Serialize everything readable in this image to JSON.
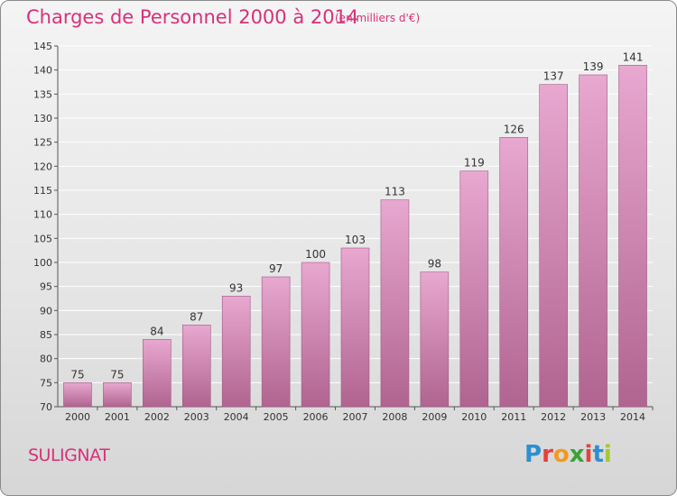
{
  "header": {
    "title": "Charges de Personnel 2000 à 2014",
    "subtitle": "(en milliers d'€)"
  },
  "footer": {
    "commune": "SULIGNAT",
    "brand": "Proxiti"
  },
  "colors": {
    "accent": "#d7317a",
    "bar_top": "#e8a8d0",
    "bar_bottom": "#b0648f"
  },
  "chart_data": {
    "type": "bar",
    "title": "Charges de Personnel 2000 à 2014",
    "subtitle": "(en milliers d'€)",
    "categories": [
      "2000",
      "2001",
      "2002",
      "2003",
      "2004",
      "2005",
      "2006",
      "2007",
      "2008",
      "2009",
      "2010",
      "2011",
      "2012",
      "2013",
      "2014"
    ],
    "values": [
      75,
      75,
      84,
      87,
      93,
      97,
      100,
      103,
      113,
      98,
      119,
      126,
      137,
      139,
      141
    ],
    "ylim": [
      70,
      145
    ],
    "yticks": [
      70,
      75,
      80,
      85,
      90,
      95,
      100,
      105,
      110,
      115,
      120,
      125,
      130,
      135,
      140,
      145
    ],
    "grid": true,
    "data_labels": true
  }
}
